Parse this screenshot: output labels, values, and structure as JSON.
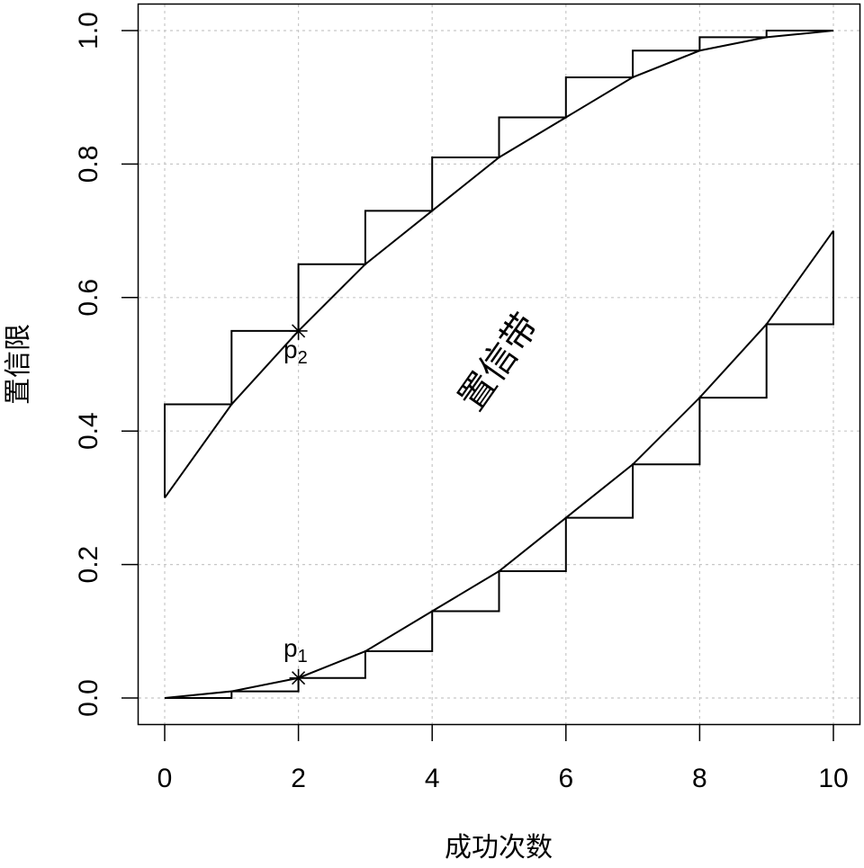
{
  "chart_data": {
    "type": "line",
    "title": "",
    "xlabel": "成功次数",
    "ylabel": "置信限",
    "xlim": [
      0,
      10
    ],
    "ylim": [
      0,
      1
    ],
    "x_ticks": [
      "0",
      "2",
      "4",
      "6",
      "8",
      "10"
    ],
    "y_ticks": [
      "0.0",
      "0.2",
      "0.4",
      "0.6",
      "0.8",
      "1.0"
    ],
    "grid": true,
    "x": [
      0,
      1,
      2,
      3,
      4,
      5,
      6,
      7,
      8,
      9,
      10
    ],
    "series": [
      {
        "role": "upper-curve",
        "values": [
          0.3,
          0.44,
          0.55,
          0.65,
          0.73,
          0.81,
          0.87,
          0.93,
          0.97,
          0.99,
          1.0
        ]
      },
      {
        "role": "lower-curve",
        "values": [
          0.0,
          0.01,
          0.03,
          0.07,
          0.13,
          0.19,
          0.27,
          0.35,
          0.45,
          0.56,
          0.7
        ]
      }
    ],
    "step_style": "staircase",
    "annotations": [
      {
        "text": "置信带"
      },
      {
        "text": "p",
        "sub": "1",
        "x": 2,
        "y": 0.03
      },
      {
        "text": "p",
        "sub": "2",
        "x": 2,
        "y": 0.55
      }
    ]
  }
}
